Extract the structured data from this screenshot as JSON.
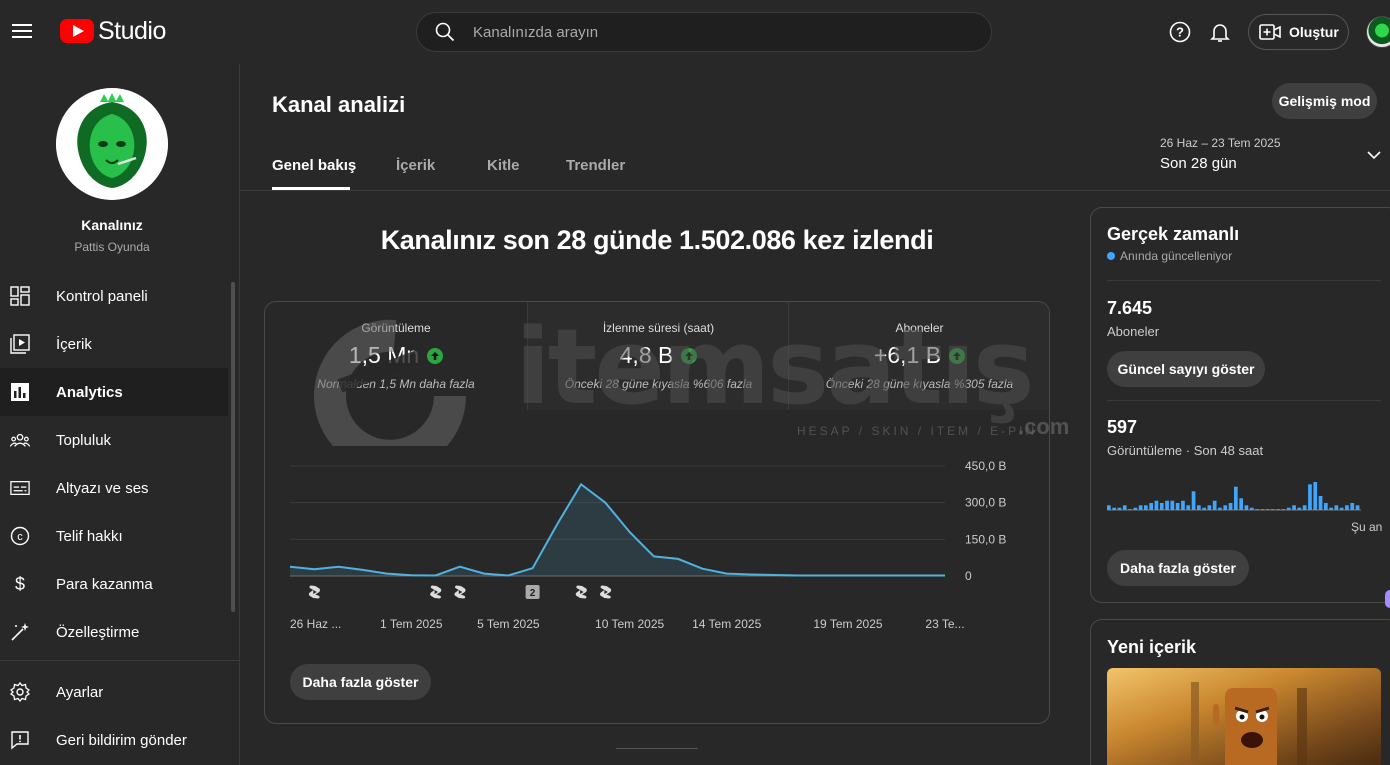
{
  "header": {
    "logo_text": "Studio",
    "search_placeholder": "Kanalınızda arayın",
    "create_label": "Oluştur"
  },
  "sidebar": {
    "channel_name": "Kanalınız",
    "channel_handle": "Pattis Oyunda",
    "items": [
      {
        "label": "Kontrol paneli"
      },
      {
        "label": "İçerik"
      },
      {
        "label": "Analytics"
      },
      {
        "label": "Topluluk"
      },
      {
        "label": "Altyazı ve ses"
      },
      {
        "label": "Telif hakkı"
      },
      {
        "label": "Para kazanma"
      },
      {
        "label": "Özelleştirme"
      }
    ],
    "bottom_items": [
      {
        "label": "Ayarlar"
      },
      {
        "label": "Geri bildirim gönder"
      }
    ]
  },
  "main": {
    "title": "Kanal analizi",
    "advanced_mode": "Gelişmiş mod",
    "tabs": [
      {
        "label": "Genel bakış"
      },
      {
        "label": "İçerik"
      },
      {
        "label": "Kitle"
      },
      {
        "label": "Trendler"
      }
    ],
    "date_range": "26 Haz – 23 Tem 2025",
    "date_period": "Son 28 gün",
    "headline": "Kanalınız son 28 günde 1.502.086 kez izlendi",
    "metrics": [
      {
        "title": "Görüntüleme",
        "value": "1,5 Mn",
        "note": "Normalden 1,5 Mn daha fazla"
      },
      {
        "title": "İzlenme süresi (saat)",
        "value": "4,8 B",
        "note": "Önceki 28 güne kıyasla %606 fazla"
      },
      {
        "title": "Aboneler",
        "value": "+6,1 B",
        "note": "Önceki 28 güne kıyasla %305 fazla"
      }
    ],
    "more_button": "Daha fazla göster",
    "video_marker_count": "2"
  },
  "chart_data": {
    "type": "line",
    "x": [
      "26 Haz",
      "27 Haz",
      "28 Haz",
      "29 Haz",
      "30 Haz",
      "1 Tem",
      "2 Tem",
      "3 Tem",
      "4 Tem",
      "5 Tem",
      "6 Tem",
      "7 Tem",
      "8 Tem",
      "9 Tem",
      "10 Tem",
      "11 Tem",
      "12 Tem",
      "13 Tem",
      "14 Tem",
      "15 Tem",
      "16 Tem",
      "17 Tem",
      "18 Tem",
      "19 Tem",
      "20 Tem",
      "21 Tem",
      "22 Tem",
      "23 Tem"
    ],
    "series": [
      {
        "values": [
          38,
          28,
          38,
          25,
          10,
          3,
          2,
          38,
          10,
          2,
          32,
          210,
          375,
          300,
          180,
          80,
          70,
          30,
          10,
          6,
          4,
          2,
          2,
          2,
          2,
          2,
          2,
          2
        ]
      }
    ],
    "xtick_labels": [
      "26 Haz ...",
      "1 Tem 2025",
      "5 Tem 2025",
      "10 Tem 2025",
      "14 Tem 2025",
      "19 Tem 2025",
      "23 Te..."
    ],
    "xtick_index": [
      0,
      5,
      9,
      14,
      18,
      23,
      27
    ],
    "ytick_labels": [
      "450,0 B",
      "300,0 B",
      "150,0 B",
      "0"
    ],
    "ytick_values": [
      450,
      300,
      150,
      0
    ],
    "ylim": [
      0,
      450
    ],
    "line_color": "#4fb3e0",
    "marker_index": [
      1,
      6,
      7,
      10,
      12,
      13
    ],
    "numbered_marker_index": 10
  },
  "realtime": {
    "title": "Gerçek zamanlı",
    "subtitle": "Anında güncelleniyor",
    "subs_value": "7.645",
    "subs_label": "Aboneler",
    "live_button": "Güncel sayıyı göster",
    "views_value": "597",
    "views_label": "Görüntüleme · Son 48 saat",
    "now_label": "Şu an",
    "more_button": "Daha fazla göster",
    "bars": [
      2,
      1,
      1,
      2,
      0,
      1,
      2,
      2,
      3,
      4,
      3,
      4,
      4,
      3,
      4,
      2,
      8,
      2,
      1,
      2,
      4,
      1,
      2,
      3,
      10,
      5,
      2,
      1,
      0,
      0,
      0,
      0,
      0,
      0,
      1,
      2,
      1,
      2,
      11,
      12,
      6,
      3,
      1,
      2,
      1,
      2,
      3,
      2
    ]
  },
  "new_content": {
    "title": "Yeni içerik"
  },
  "watermark": {
    "text": "itemsatış",
    "sub": "HESAP / SKIN / ITEM / E-PIN",
    "com": ".com"
  },
  "colors": {
    "bg": "#282828",
    "accent": "#3ea6ff",
    "up": "#2ba640",
    "brand": "#ff0000"
  }
}
